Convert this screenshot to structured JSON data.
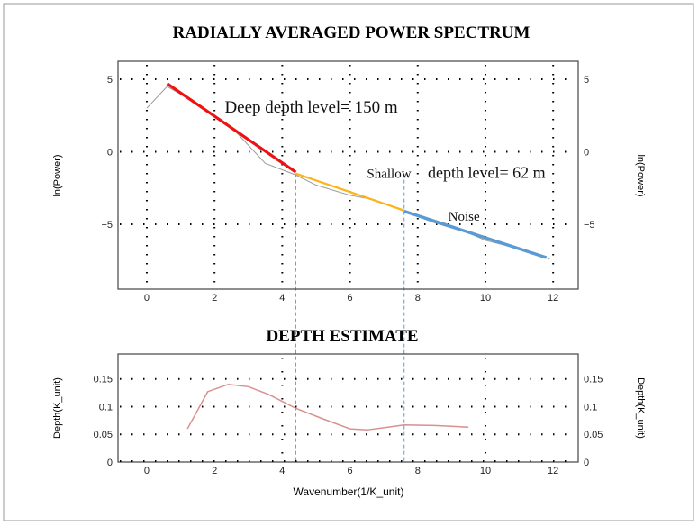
{
  "chart_data": [
    {
      "type": "line",
      "title": "RADIALLY AVERAGED POWER SPECTRUM",
      "xlabel": "",
      "ylabel": "ln(Power)",
      "ylabel_right": "ln(Power)",
      "xlim": [
        -0.85,
        12.74
      ],
      "ylim": [
        -9.47,
        6.24
      ],
      "xticks": [
        0,
        2,
        4,
        6,
        8,
        10,
        12
      ],
      "yticks": [
        5,
        0,
        -5
      ],
      "grid": "dotted",
      "series": [
        {
          "name": "spectrum",
          "color": "#999999",
          "x": [
            0,
            0.6,
            1.5,
            2.5,
            3.5,
            4.4,
            5,
            6,
            6.7,
            7.6,
            8.5,
            9.5,
            10,
            11,
            11.9
          ],
          "y": [
            3,
            4.5,
            3.3,
            1.7,
            -0.8,
            -1.6,
            -2.3,
            -3,
            -3.3,
            -4.1,
            -4.9,
            -5.6,
            -6.1,
            -6.7,
            -7.4
          ]
        },
        {
          "name": "deep fit",
          "color": "#ee1111",
          "x": [
            0.6,
            4.4
          ],
          "y": [
            4.7,
            -1.4
          ]
        },
        {
          "name": "shallow fit",
          "color": "#ffb31a",
          "x": [
            4.4,
            7.6
          ],
          "y": [
            -1.5,
            -4.05
          ]
        },
        {
          "name": "noise fit",
          "color": "#5b9bd5",
          "x": [
            7.6,
            11.8
          ],
          "y": [
            -4.1,
            -7.3
          ]
        }
      ],
      "annotations": [
        {
          "text": "Deep depth level= 150 m",
          "x": 2.3,
          "y": 2.7
        },
        {
          "text": "Shallow",
          "x": 6.5,
          "y": -1.8
        },
        {
          "text": "depth level= 62 m",
          "x": 8.3,
          "y": -1.8
        },
        {
          "text": "Noise",
          "x": 8.9,
          "y": -4.75
        }
      ],
      "breaks": [
        4.4,
        7.6
      ]
    },
    {
      "type": "line",
      "title": "DEPTH ESTIMATE",
      "xlabel": "Wavenumber(1/K_unit)",
      "ylabel": "Depth(K_unit)",
      "ylabel_right": "Depth(K_unit)",
      "xlim": [
        -0.85,
        12.74
      ],
      "ylim": [
        0,
        0.195
      ],
      "xticks": [
        0,
        2,
        4,
        6,
        8,
        10,
        12
      ],
      "yticks": [
        0,
        0.05,
        0.1,
        0.15
      ],
      "ytick_labels": [
        "0",
        "0.05",
        "0.1",
        "0.15"
      ],
      "grid": "dotted",
      "series": [
        {
          "name": "depth",
          "color": "#d9908f",
          "x": [
            1.2,
            1.8,
            2.4,
            3,
            3.6,
            4.4,
            5.2,
            6,
            6.5,
            7,
            7.6,
            8.5,
            9.5
          ],
          "y": [
            0.06,
            0.127,
            0.14,
            0.136,
            0.122,
            0.097,
            0.078,
            0.06,
            0.058,
            0.062,
            0.067,
            0.066,
            0.063
          ]
        }
      ]
    }
  ]
}
